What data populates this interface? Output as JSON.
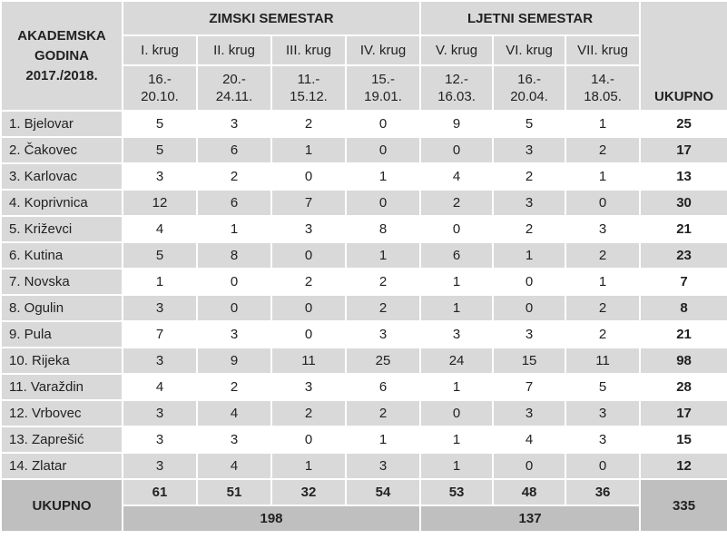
{
  "header": {
    "year_label": "AKADEMSKA GODINA 2017./2018.",
    "winter_label": "ZIMSKI SEMESTAR",
    "summer_label": "LJETNI SEMESTAR",
    "total_label": "UKUPNO",
    "rounds": [
      "I. krug",
      "II. krug",
      "III. krug",
      "IV. krug",
      "V. krug",
      "VI. krug",
      "VII. krug"
    ],
    "dates": [
      [
        "16.-",
        "20.10."
      ],
      [
        "20.-",
        "24.11."
      ],
      [
        "11.-",
        "15.12."
      ],
      [
        "15.-",
        "19.01."
      ],
      [
        "12.-",
        "16.03."
      ],
      [
        "16.-",
        "20.04."
      ],
      [
        "14.-",
        "18.05."
      ]
    ]
  },
  "rows": [
    {
      "city": "1. Bjelovar",
      "values": [
        "5",
        "3",
        "2",
        "0",
        "9",
        "5",
        "1"
      ],
      "total": "25"
    },
    {
      "city": "2. Čakovec",
      "values": [
        "5",
        "6",
        "1",
        "0",
        "0",
        "3",
        "2"
      ],
      "total": "17"
    },
    {
      "city": "3. Karlovac",
      "values": [
        "3",
        "2",
        "0",
        "1",
        "4",
        "2",
        "1"
      ],
      "total": "13"
    },
    {
      "city": "4. Koprivnica",
      "values": [
        "12",
        "6",
        "7",
        "0",
        "2",
        "3",
        "0"
      ],
      "total": "30"
    },
    {
      "city": "5. Križevci",
      "values": [
        "4",
        "1",
        "3",
        "8",
        "0",
        "2",
        "3"
      ],
      "total": "21"
    },
    {
      "city": "6. Kutina",
      "values": [
        "5",
        "8",
        "0",
        "1",
        "6",
        "1",
        "2"
      ],
      "total": "23"
    },
    {
      "city": "7. Novska",
      "values": [
        "1",
        "0",
        "2",
        "2",
        "1",
        "0",
        "1"
      ],
      "total": "7"
    },
    {
      "city": "8. Ogulin",
      "values": [
        "3",
        "0",
        "0",
        "2",
        "1",
        "0",
        "2"
      ],
      "total": "8"
    },
    {
      "city": "9. Pula",
      "values": [
        "7",
        "3",
        "0",
        "3",
        "3",
        "3",
        "2"
      ],
      "total": "21"
    },
    {
      "city": "10. Rijeka",
      "values": [
        "3",
        "9",
        "11",
        "25",
        "24",
        "15",
        "11"
      ],
      "total": "98"
    },
    {
      "city": "11. Varaždin",
      "values": [
        "4",
        "2",
        "3",
        "6",
        "1",
        "7",
        "5"
      ],
      "total": "28"
    },
    {
      "city": "12. Vrbovec",
      "values": [
        "3",
        "4",
        "2",
        "2",
        "0",
        "3",
        "3"
      ],
      "total": "17"
    },
    {
      "city": "13. Zaprešić",
      "values": [
        "3",
        "3",
        "0",
        "1",
        "1",
        "4",
        "3"
      ],
      "total": "15"
    },
    {
      "city": "14. Zlatar",
      "values": [
        "3",
        "4",
        "1",
        "3",
        "1",
        "0",
        "0"
      ],
      "total": "12"
    }
  ],
  "footer": {
    "label": "UKUPNO",
    "round_totals": [
      "61",
      "51",
      "32",
      "54",
      "53",
      "48",
      "36"
    ],
    "winter_total": "198",
    "summer_total": "137",
    "grand_total": "335"
  }
}
